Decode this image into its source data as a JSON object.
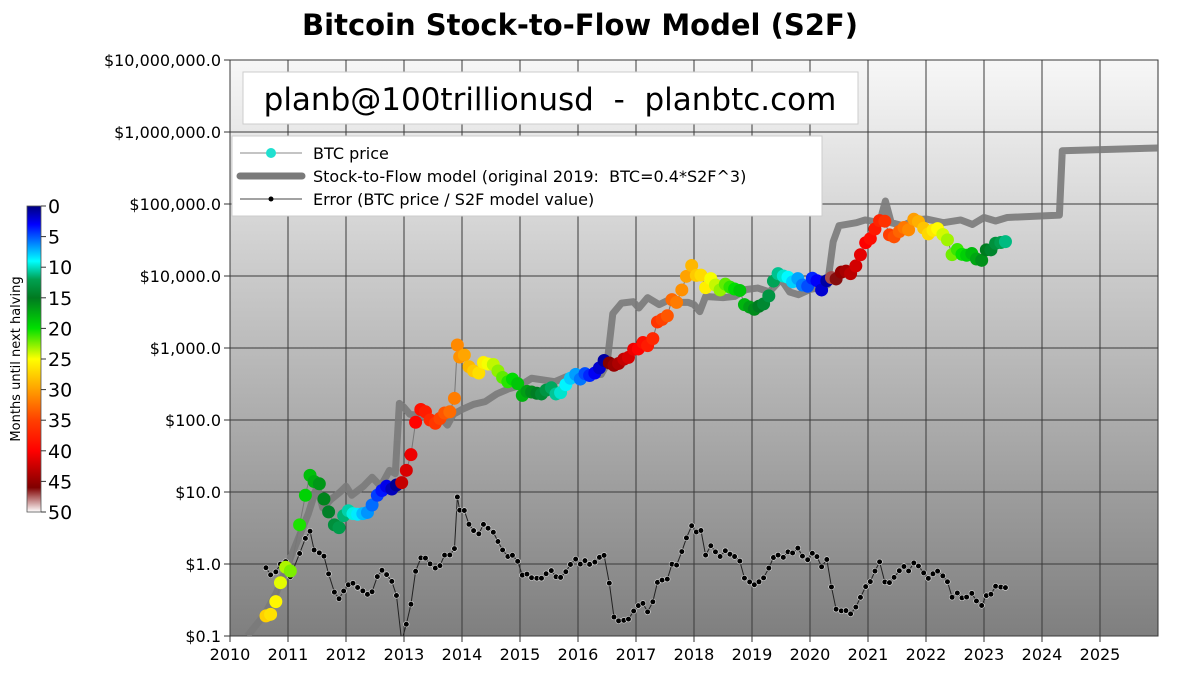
{
  "chart_data": {
    "type": "scatter",
    "title": "Bitcoin Stock-to-Flow Model (S2F)",
    "watermark": "planb@100trillionusd  -  planbtc.com",
    "xlabel": "",
    "ylabel": "",
    "xlim": [
      2010,
      2026
    ],
    "ylim": [
      0.1,
      10000000
    ],
    "yscale": "log",
    "grid": true,
    "legend_placement": "top-left",
    "x_ticks": [
      "2010",
      "2011",
      "2012",
      "2013",
      "2014",
      "2015",
      "2016",
      "2017",
      "2018",
      "2019",
      "2020",
      "2021",
      "2022",
      "2023",
      "2024",
      "2025"
    ],
    "y_ticks": [
      {
        "value": 0.1,
        "label": "$0.1"
      },
      {
        "value": 1,
        "label": "$1.0"
      },
      {
        "value": 10,
        "label": "$10.0"
      },
      {
        "value": 100,
        "label": "$100.0"
      },
      {
        "value": 1000,
        "label": "$1,000.0"
      },
      {
        "value": 10000,
        "label": "$10,000.0"
      },
      {
        "value": 100000,
        "label": "$100,000.0"
      },
      {
        "value": 1000000,
        "label": "$1,000,000.0"
      },
      {
        "value": 10000000,
        "label": "$10,000,000.0"
      }
    ],
    "legend": [
      {
        "label": "BTC price",
        "color": "#20e0d0"
      },
      {
        "label": "Stock-to-Flow model (original 2019:  BTC=0.4*S2F^3)",
        "color": "#808080"
      },
      {
        "label": "Error (BTC price / S2F model value)",
        "color": "#000000"
      }
    ],
    "colorbar": {
      "label": "Months until next halving",
      "ticks": [
        "0",
        "5",
        "10",
        "15",
        "20",
        "25",
        "30",
        "35",
        "40",
        "45",
        "50"
      ],
      "range": [
        0,
        50
      ],
      "colors": [
        "#00007f",
        "#0000ff",
        "#0080ff",
        "#00ffff",
        "#00a050",
        "#007a20",
        "#00e000",
        "#ffff00",
        "#ffa000",
        "#ff4000",
        "#ff0000",
        "#800000",
        "#ffffff"
      ],
      "stops": [
        0,
        3,
        6,
        9,
        12,
        15,
        20,
        25,
        30,
        35,
        40,
        46,
        50
      ]
    },
    "series": [
      {
        "name": "BTC price",
        "points": [
          [
            2010.62,
            0.19
          ],
          [
            2010.7,
            0.2
          ],
          [
            2010.79,
            0.3
          ],
          [
            2010.87,
            0.55
          ],
          [
            2010.96,
            0.9
          ],
          [
            2011.04,
            0.8
          ],
          [
            2011.2,
            3.5
          ],
          [
            2011.3,
            9
          ],
          [
            2011.38,
            17
          ],
          [
            2011.45,
            14
          ],
          [
            2011.54,
            13
          ],
          [
            2011.62,
            8
          ],
          [
            2011.7,
            5.3
          ],
          [
            2011.8,
            3.5
          ],
          [
            2011.88,
            3.2
          ],
          [
            2011.96,
            4.7
          ],
          [
            2012.04,
            5.5
          ],
          [
            2012.12,
            5
          ],
          [
            2012.2,
            4.9
          ],
          [
            2012.29,
            5
          ],
          [
            2012.37,
            5.2
          ],
          [
            2012.45,
            6.6
          ],
          [
            2012.54,
            9
          ],
          [
            2012.62,
            10.5
          ],
          [
            2012.7,
            12
          ],
          [
            2012.79,
            11
          ],
          [
            2012.87,
            12.5
          ],
          [
            2012.96,
            13.5
          ],
          [
            2013.04,
            20
          ],
          [
            2013.12,
            33
          ],
          [
            2013.2,
            93
          ],
          [
            2013.29,
            140
          ],
          [
            2013.37,
            130
          ],
          [
            2013.45,
            100
          ],
          [
            2013.54,
            90
          ],
          [
            2013.62,
            105
          ],
          [
            2013.7,
            125
          ],
          [
            2013.79,
            130
          ],
          [
            2013.87,
            200
          ],
          [
            2013.92,
            1100
          ],
          [
            2013.96,
            750
          ],
          [
            2014.04,
            800
          ],
          [
            2014.12,
            550
          ],
          [
            2014.2,
            480
          ],
          [
            2014.29,
            450
          ],
          [
            2014.37,
            630
          ],
          [
            2014.45,
            600
          ],
          [
            2014.54,
            590
          ],
          [
            2014.62,
            480
          ],
          [
            2014.7,
            390
          ],
          [
            2014.79,
            340
          ],
          [
            2014.87,
            370
          ],
          [
            2014.96,
            320
          ],
          [
            2015.04,
            220
          ],
          [
            2015.12,
            250
          ],
          [
            2015.2,
            245
          ],
          [
            2015.29,
            235
          ],
          [
            2015.37,
            230
          ],
          [
            2015.45,
            260
          ],
          [
            2015.54,
            280
          ],
          [
            2015.62,
            230
          ],
          [
            2015.7,
            240
          ],
          [
            2015.79,
            310
          ],
          [
            2015.87,
            380
          ],
          [
            2015.96,
            430
          ],
          [
            2016.04,
            370
          ],
          [
            2016.12,
            440
          ],
          [
            2016.2,
            415
          ],
          [
            2016.29,
            450
          ],
          [
            2016.37,
            530
          ],
          [
            2016.45,
            670
          ],
          [
            2016.54,
            620
          ],
          [
            2016.62,
            575
          ],
          [
            2016.7,
            610
          ],
          [
            2016.79,
            700
          ],
          [
            2016.87,
            740
          ],
          [
            2016.96,
            960
          ],
          [
            2017.04,
            970
          ],
          [
            2017.12,
            1190
          ],
          [
            2017.2,
            1080
          ],
          [
            2017.29,
            1350
          ],
          [
            2017.37,
            2300
          ],
          [
            2017.45,
            2500
          ],
          [
            2017.54,
            2800
          ],
          [
            2017.62,
            4700
          ],
          [
            2017.7,
            4300
          ],
          [
            2017.79,
            6400
          ],
          [
            2017.87,
            9900
          ],
          [
            2017.96,
            14000
          ],
          [
            2018.04,
            10200
          ],
          [
            2018.12,
            10300
          ],
          [
            2018.2,
            6900
          ],
          [
            2018.29,
            9200
          ],
          [
            2018.37,
            7500
          ],
          [
            2018.45,
            6400
          ],
          [
            2018.54,
            7700
          ],
          [
            2018.62,
            7000
          ],
          [
            2018.7,
            6600
          ],
          [
            2018.79,
            6300
          ],
          [
            2018.87,
            4000
          ],
          [
            2018.96,
            3700
          ],
          [
            2019.04,
            3450
          ],
          [
            2019.12,
            3800
          ],
          [
            2019.2,
            4100
          ],
          [
            2019.29,
            5300
          ],
          [
            2019.37,
            8500
          ],
          [
            2019.45,
            10800
          ],
          [
            2019.54,
            10000
          ],
          [
            2019.62,
            9600
          ],
          [
            2019.7,
            8300
          ],
          [
            2019.79,
            9200
          ],
          [
            2019.87,
            7500
          ],
          [
            2019.96,
            7200
          ],
          [
            2020.04,
            9300
          ],
          [
            2020.12,
            8600
          ],
          [
            2020.2,
            6400
          ],
          [
            2020.29,
            8600
          ],
          [
            2020.37,
            9500
          ],
          [
            2020.45,
            9100
          ],
          [
            2020.54,
            11300
          ],
          [
            2020.62,
            11700
          ],
          [
            2020.7,
            10800
          ],
          [
            2020.79,
            13800
          ],
          [
            2020.87,
            19700
          ],
          [
            2020.96,
            29000
          ],
          [
            2021.04,
            33100
          ],
          [
            2021.12,
            45000
          ],
          [
            2021.2,
            58800
          ],
          [
            2021.29,
            57700
          ],
          [
            2021.37,
            37300
          ],
          [
            2021.45,
            35000
          ],
          [
            2021.54,
            41500
          ],
          [
            2021.62,
            47100
          ],
          [
            2021.7,
            43800
          ],
          [
            2021.79,
            61300
          ],
          [
            2021.87,
            57000
          ],
          [
            2021.96,
            46300
          ],
          [
            2022.04,
            38500
          ],
          [
            2022.12,
            43200
          ],
          [
            2022.2,
            45500
          ],
          [
            2022.29,
            37700
          ],
          [
            2022.37,
            31800
          ],
          [
            2022.45,
            19800
          ],
          [
            2022.54,
            23300
          ],
          [
            2022.62,
            20000
          ],
          [
            2022.7,
            19400
          ],
          [
            2022.79,
            20500
          ],
          [
            2022.87,
            17200
          ],
          [
            2022.96,
            16500
          ],
          [
            2023.04,
            23100
          ],
          [
            2023.12,
            23100
          ],
          [
            2023.2,
            28500
          ],
          [
            2023.29,
            29200
          ],
          [
            2023.37,
            30000
          ]
        ]
      },
      {
        "name": "Stock-to-Flow model (original 2019:  BTC=0.4*S2F^3)",
        "points": [
          [
            2010.3,
            0.1
          ],
          [
            2010.6,
            0.2
          ],
          [
            2010.8,
            0.4
          ],
          [
            2011.0,
            1
          ],
          [
            2011.2,
            2.5
          ],
          [
            2011.35,
            5
          ],
          [
            2011.5,
            12
          ],
          [
            2011.6,
            6
          ],
          [
            2011.75,
            8
          ],
          [
            2011.9,
            10
          ],
          [
            2012.0,
            12
          ],
          [
            2012.1,
            9
          ],
          [
            2012.3,
            12
          ],
          [
            2012.45,
            16
          ],
          [
            2012.6,
            12
          ],
          [
            2012.75,
            20
          ],
          [
            2012.85,
            18
          ],
          [
            2012.92,
            170
          ],
          [
            2013.0,
            150
          ],
          [
            2013.1,
            120
          ],
          [
            2013.3,
            115
          ],
          [
            2013.5,
            95
          ],
          [
            2013.6,
            115
          ],
          [
            2013.75,
            85
          ],
          [
            2013.85,
            120
          ],
          [
            2014.0,
            140
          ],
          [
            2014.2,
            165
          ],
          [
            2014.4,
            180
          ],
          [
            2014.6,
            230
          ],
          [
            2014.8,
            270
          ],
          [
            2015.0,
            300
          ],
          [
            2015.2,
            380
          ],
          [
            2015.4,
            360
          ],
          [
            2015.6,
            340
          ],
          [
            2015.8,
            400
          ],
          [
            2016.0,
            360
          ],
          [
            2016.2,
            420
          ],
          [
            2016.4,
            430
          ],
          [
            2016.5,
            600
          ],
          [
            2016.6,
            3000
          ],
          [
            2016.75,
            4200
          ],
          [
            2016.95,
            4400
          ],
          [
            2017.05,
            3600
          ],
          [
            2017.2,
            5000
          ],
          [
            2017.4,
            4000
          ],
          [
            2017.6,
            4800
          ],
          [
            2017.75,
            4300
          ],
          [
            2017.9,
            4300
          ],
          [
            2018.0,
            4000
          ],
          [
            2018.1,
            3200
          ],
          [
            2018.2,
            5200
          ],
          [
            2018.5,
            5000
          ],
          [
            2018.7,
            5200
          ],
          [
            2018.9,
            6500
          ],
          [
            2019.1,
            6800
          ],
          [
            2019.3,
            6000
          ],
          [
            2019.5,
            9000
          ],
          [
            2019.65,
            6000
          ],
          [
            2019.8,
            5500
          ],
          [
            2020.0,
            6500
          ],
          [
            2020.2,
            7000
          ],
          [
            2020.3,
            7500
          ],
          [
            2020.4,
            30000
          ],
          [
            2020.5,
            50000
          ],
          [
            2020.8,
            55000
          ],
          [
            2020.95,
            60000
          ],
          [
            2021.2,
            55000
          ],
          [
            2021.3,
            110000
          ],
          [
            2021.4,
            55000
          ],
          [
            2021.6,
            50000
          ],
          [
            2021.8,
            60000
          ],
          [
            2022.0,
            62000
          ],
          [
            2022.3,
            55000
          ],
          [
            2022.6,
            60000
          ],
          [
            2022.8,
            52000
          ],
          [
            2023.0,
            65000
          ],
          [
            2023.2,
            58000
          ],
          [
            2023.4,
            65000
          ],
          [
            2024.3,
            70000
          ],
          [
            2024.35,
            550000
          ],
          [
            2026,
            600000
          ]
        ]
      }
    ]
  }
}
